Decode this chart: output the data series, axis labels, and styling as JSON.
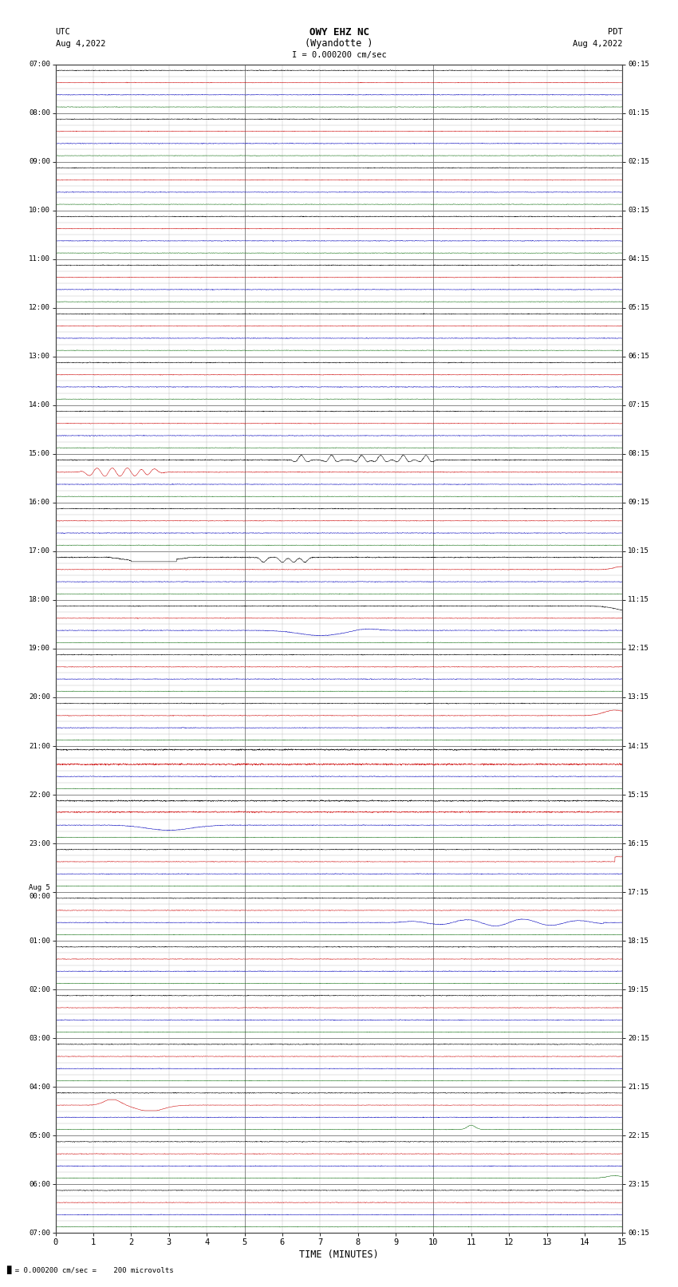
{
  "title_line1": "OWY EHZ NC",
  "title_line2": "(Wyandotte )",
  "scale_label": "I = 0.000200 cm/sec",
  "left_label_top": "UTC",
  "left_label_date": "Aug 4,2022",
  "right_label_top": "PDT",
  "right_label_date": "Aug 4,2022",
  "bottom_label": "TIME (MINUTES)",
  "footnote": "= 0.000200 cm/sec =    200 microvolts",
  "utc_labels": [
    "07:00",
    "08:00",
    "09:00",
    "10:00",
    "11:00",
    "12:00",
    "13:00",
    "14:00",
    "15:00",
    "16:00",
    "17:00",
    "18:00",
    "19:00",
    "20:00",
    "21:00",
    "22:00",
    "23:00",
    "Aug 5\n00:00",
    "01:00",
    "02:00",
    "03:00",
    "04:00",
    "05:00",
    "06:00",
    "07:00"
  ],
  "pdt_labels": [
    "00:15",
    "01:15",
    "02:15",
    "03:15",
    "04:15",
    "05:15",
    "06:15",
    "07:15",
    "08:15",
    "09:15",
    "10:15",
    "11:15",
    "12:15",
    "13:15",
    "14:15",
    "15:15",
    "16:15",
    "17:15",
    "18:15",
    "19:15",
    "20:15",
    "21:15",
    "22:15",
    "23:15",
    "00:15"
  ],
  "n_rows": 96,
  "x_min": 0,
  "x_max": 15,
  "colors": {
    "black": "#000000",
    "red": "#cc0000",
    "blue": "#0000bb",
    "green": "#006600",
    "background": "#ffffff",
    "grid_major": "#888888",
    "grid_minor": "#bbbbbb"
  },
  "figsize": [
    8.5,
    16.13
  ],
  "dpi": 100
}
